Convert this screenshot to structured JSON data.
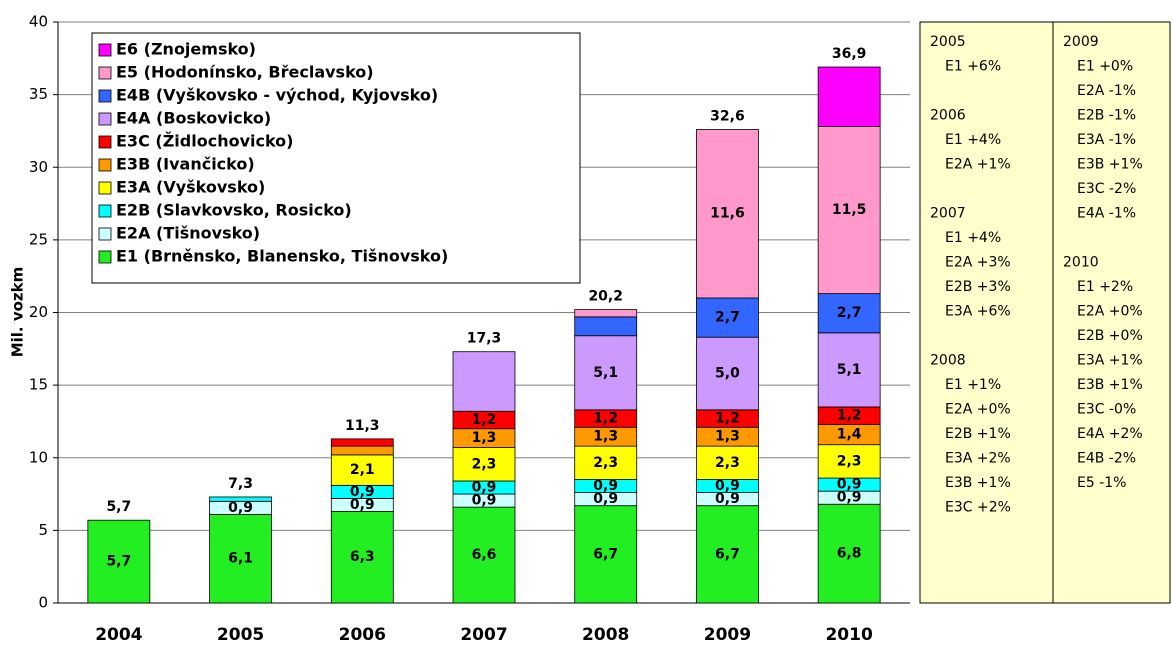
{
  "chart_data": {
    "type": "stacked_bar",
    "y_label": "Mil. vozkm",
    "categories": [
      "2004",
      "2005",
      "2006",
      "2007",
      "2008",
      "2009",
      "2010"
    ],
    "ylim": [
      0,
      40
    ],
    "yticks": [
      0,
      5,
      10,
      15,
      20,
      25,
      30,
      35,
      40
    ],
    "grid": true,
    "legend": "upper left",
    "series": [
      {
        "name": "E1 (Brněnsko, Blanensko, Tišnovsko)",
        "color": "#22ee22",
        "values": [
          5.7,
          6.1,
          6.3,
          6.6,
          6.7,
          6.7,
          6.8
        ],
        "value_labels": [
          "5,7",
          "6,1",
          "6,3",
          "6,6",
          "6,7",
          "6,7",
          "6,8"
        ]
      },
      {
        "name": "E2A (Tišnovsko)",
        "color": "#ccffff",
        "values": [
          null,
          0.9,
          0.9,
          0.9,
          0.9,
          0.9,
          0.9
        ],
        "value_labels": [
          null,
          "0,9",
          "0,9",
          "0,9",
          "0,9",
          "0,9",
          "0,9"
        ]
      },
      {
        "name": "E2B (Slavkovsko, Rosicko)",
        "color": "#00ffff",
        "values": [
          null,
          0.3,
          0.9,
          0.9,
          0.9,
          0.9,
          0.9
        ],
        "value_labels": [
          null,
          null,
          "0,9",
          "0,9",
          "0,9",
          "0,9",
          "0,9"
        ]
      },
      {
        "name": "E3A (Vyškovsko)",
        "color": "#ffff00",
        "values": [
          null,
          null,
          2.1,
          2.3,
          2.3,
          2.3,
          2.3
        ],
        "value_labels": [
          null,
          null,
          "2,1",
          "2,3",
          "2,3",
          "2,3",
          "2,3"
        ]
      },
      {
        "name": "E3B (Ivančicko)",
        "color": "#ff9900",
        "values": [
          null,
          null,
          0.6,
          1.3,
          1.3,
          1.3,
          1.4
        ],
        "value_labels": [
          null,
          null,
          null,
          "1,3",
          "1,3",
          "1,3",
          "1,4"
        ]
      },
      {
        "name": "E3C (Židlochovicko)",
        "color": "#ff0000",
        "values": [
          null,
          null,
          0.5,
          1.2,
          1.2,
          1.2,
          1.2
        ],
        "value_labels": [
          null,
          null,
          null,
          "1,2",
          "1,2",
          "1,2",
          "1,2"
        ]
      },
      {
        "name": "E4A (Boskovicko)",
        "color": "#cc99ff",
        "values": [
          null,
          null,
          null,
          4.1,
          5.1,
          5.0,
          5.1
        ],
        "value_labels": [
          null,
          null,
          null,
          null,
          "5,1",
          "5,0",
          "5,1"
        ]
      },
      {
        "name": "E4B (Vyškovsko - východ, Kyjovsko)",
        "color": "#3366ff",
        "values": [
          null,
          null,
          null,
          null,
          1.3,
          2.7,
          2.7
        ],
        "value_labels": [
          null,
          null,
          null,
          null,
          null,
          "2,7",
          "2,7"
        ]
      },
      {
        "name": "E5 (Hodonínsko, Břeclavsko)",
        "color": "#ff99cc",
        "values": [
          null,
          null,
          null,
          null,
          0.5,
          11.6,
          11.5
        ],
        "value_labels": [
          null,
          null,
          null,
          null,
          null,
          "11,6",
          "11,5"
        ]
      },
      {
        "name": "E6 (Znojemsko)",
        "color": "#ff00ff",
        "values": [
          null,
          null,
          null,
          null,
          null,
          null,
          4.1
        ],
        "value_labels": [
          null,
          null,
          null,
          null,
          null,
          null,
          null
        ]
      }
    ],
    "totals": [
      5.7,
      7.3,
      11.3,
      17.3,
      20.2,
      32.6,
      36.9
    ],
    "total_labels": [
      "5,7",
      "7,3",
      "11,3",
      "17,3",
      "20,2",
      "32,6",
      "36,9"
    ]
  },
  "panel": {
    "columns": [
      [
        {
          "year": "2005",
          "lines": [
            "E1 +6%"
          ]
        },
        {
          "year": "2006",
          "lines": [
            "E1 +4%",
            "E2A +1%"
          ]
        },
        {
          "year": "2007",
          "lines": [
            "E1 +4%",
            "E2A +3%",
            "E2B +3%",
            "E3A +6%"
          ]
        },
        {
          "year": "2008",
          "lines": [
            "E1 +1%",
            "E2A +0%",
            "E2B +1%",
            "E3A +2%",
            "E3B +1%",
            "E3C +2%"
          ]
        }
      ],
      [
        {
          "year": "2009",
          "lines": [
            "E1 +0%",
            "E2A -1%",
            "E2B -1%",
            "E3A -1%",
            "E3B +1%",
            "E3C -2%",
            "E4A -1%"
          ]
        },
        {
          "year": "2010",
          "lines": [
            "E1 +2%",
            "E2A +0%",
            "E2B +0%",
            "E3A +1%",
            "E3B +1%",
            "E3C -0%",
            "E4A +2%",
            "E4B -2%",
            "E5 -1%"
          ]
        }
      ]
    ]
  }
}
